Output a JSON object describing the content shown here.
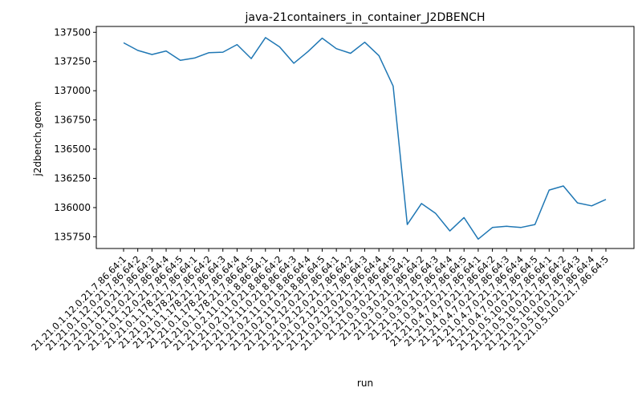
{
  "chart_data": {
    "type": "line",
    "title": "java-21containers_in_container_J2DBENCH",
    "xlabel": "run",
    "ylabel": "j2dbench.geom",
    "ylim": [
      135650,
      137550
    ],
    "yticks": [
      135750,
      136000,
      136250,
      136500,
      136750,
      137000,
      137250,
      137500
    ],
    "grid": false,
    "line_color": "#1f77b4",
    "categories": [
      "21.21.0.1.12.0.21.7.86.64:1",
      "21.21.0.1.12.0.21.7.86.64:2",
      "21.21.0.1.12.0.21.7.86.64:3",
      "21.21.0.1.12.0.21.7.86.64:4",
      "21.21.0.1.12.0.21.7.86.64:5",
      "21.21.0.1.178.21.7.86.64:1",
      "21.21.0.1.178.21.7.86.64:2",
      "21.21.0.1.178.21.7.86.64:3",
      "21.21.0.1.178.21.7.86.64:4",
      "21.21.0.1.178.21.7.86.64:5",
      "21.21.0.2.11.0.21.8.86.64:1",
      "21.21.0.2.11.0.21.8.86.64:2",
      "21.21.0.2.11.0.21.8.86.64:3",
      "21.21.0.2.11.0.21.8.86.64:4",
      "21.21.0.2.11.0.21.8.86.64:5",
      "21.21.0.2.12.0.21.7.86.64:1",
      "21.21.0.2.12.0.21.7.86.64:2",
      "21.21.0.2.12.0.21.7.86.64:3",
      "21.21.0.2.12.0.21.7.86.64:4",
      "21.21.0.2.12.0.21.7.86.64:5",
      "21.21.0.3.0.21.7.86.64:1",
      "21.21.0.3.0.21.7.86.64:2",
      "21.21.0.3.0.21.7.86.64:3",
      "21.21.0.3.0.21.7.86.64:4",
      "21.21.0.3.0.21.7.86.64:5",
      "21.21.0.4.7.0.21.7.86.64:1",
      "21.21.0.4.7.0.21.7.86.64:2",
      "21.21.0.4.7.0.21.7.86.64:3",
      "21.21.0.4.7.0.21.7.86.64:4",
      "21.21.0.4.7.0.21.7.86.64:5",
      "21.21.0.5.10.0.21.7.86.64:1",
      "21.21.0.5.10.0.21.7.86.64:2",
      "21.21.0.5.10.0.21.7.86.64:3",
      "21.21.0.5.10.0.21.7.86.64:4",
      "21.21.0.5.10.0.21.7.86.64:5"
    ],
    "values": [
      137410,
      137345,
      137310,
      137340,
      137260,
      137280,
      137325,
      137330,
      137395,
      137275,
      137455,
      137375,
      137235,
      137335,
      137450,
      137360,
      137320,
      137415,
      137300,
      137040,
      135855,
      136035,
      135950,
      135800,
      135915,
      135730,
      135830,
      135840,
      135830,
      135855,
      136150,
      136185,
      136040,
      136015,
      136070
    ]
  }
}
